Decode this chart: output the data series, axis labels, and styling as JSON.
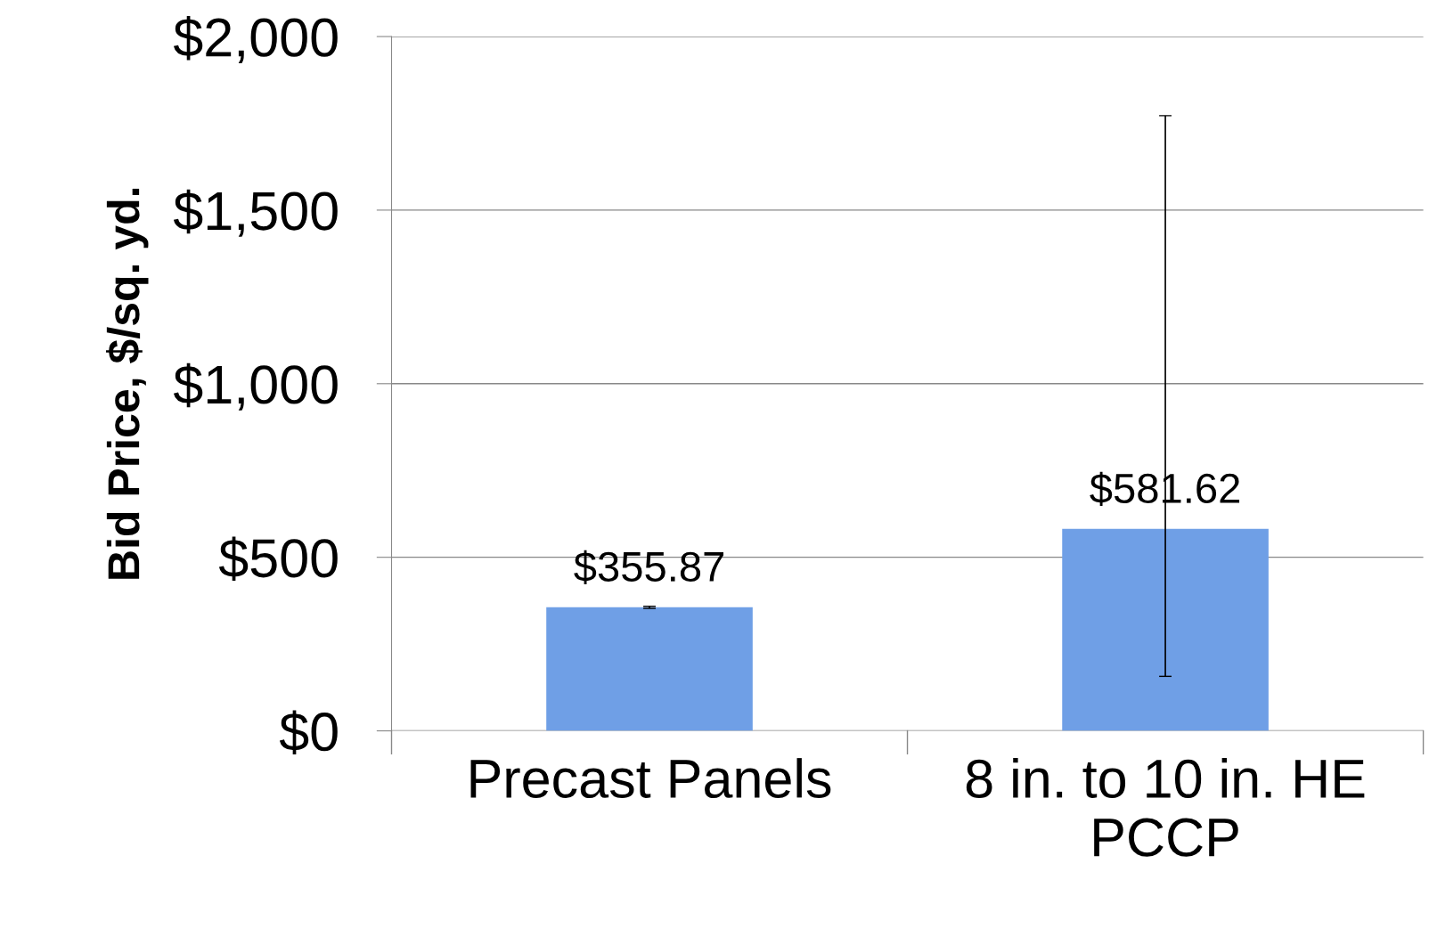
{
  "chart_data": {
    "type": "bar",
    "ylabel": "Bid Price, $/sq. yd.",
    "categories": [
      "Precast Panels",
      "8 in. to 10 in. HE\nPCCP"
    ],
    "values": [
      355.87,
      581.62
    ],
    "value_labels": [
      "$355.87",
      "$581.62"
    ],
    "errors": [
      3,
      [
        157,
        1772
      ]
    ],
    "color": "#6f9fe6",
    "ylim": [
      0,
      2000
    ],
    "yticks": [
      {
        "value": 0,
        "label": "$0"
      },
      {
        "value": 500,
        "label": "$500"
      },
      {
        "value": 1000,
        "label": "$1,000"
      },
      {
        "value": 1500,
        "label": "$1,500"
      },
      {
        "value": 2000,
        "label": "$2,000"
      }
    ],
    "grid": "y",
    "legend": false
  }
}
